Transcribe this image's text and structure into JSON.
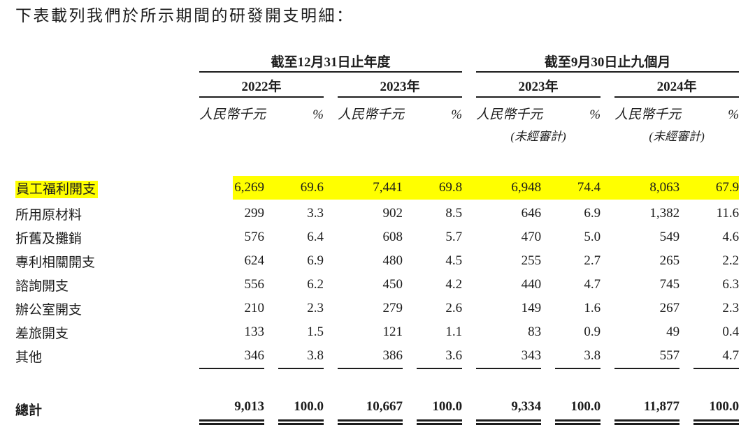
{
  "title": "下表載列我們於所示期間的研發開支明細：",
  "table": {
    "highlight_color": "#ffff00",
    "unit_header": "人民幣千元",
    "pct_header": "%",
    "col_groups": [
      {
        "label": "截至12月31日止年度",
        "years": [
          {
            "label": "2022年"
          },
          {
            "label": "2023年"
          }
        ]
      },
      {
        "label": "截至9月30日止九個月",
        "years": [
          {
            "label": "2023年",
            "unaudited": "(未經審計)"
          },
          {
            "label": "2024年",
            "unaudited": "(未經審計)"
          }
        ]
      }
    ],
    "rows": [
      {
        "label": "員工福利開支",
        "highlight": true,
        "values": [
          "6,269",
          "69.6",
          "7,441",
          "69.8",
          "6,948",
          "74.4",
          "8,063",
          "67.9"
        ]
      },
      {
        "label": "所用原材料",
        "highlight": false,
        "values": [
          "299",
          "3.3",
          "902",
          "8.5",
          "646",
          "6.9",
          "1,382",
          "11.6"
        ]
      },
      {
        "label": "折舊及攤銷",
        "highlight": false,
        "values": [
          "576",
          "6.4",
          "608",
          "5.7",
          "470",
          "5.0",
          "549",
          "4.6"
        ]
      },
      {
        "label": "專利相關開支",
        "highlight": false,
        "values": [
          "624",
          "6.9",
          "480",
          "4.5",
          "255",
          "2.7",
          "265",
          "2.2"
        ]
      },
      {
        "label": "諮詢開支",
        "highlight": false,
        "values": [
          "556",
          "6.2",
          "450",
          "4.2",
          "440",
          "4.7",
          "745",
          "6.3"
        ]
      },
      {
        "label": "辦公室開支",
        "highlight": false,
        "values": [
          "210",
          "2.3",
          "279",
          "2.6",
          "149",
          "1.6",
          "267",
          "2.3"
        ]
      },
      {
        "label": "差旅開支",
        "highlight": false,
        "values": [
          "133",
          "1.5",
          "121",
          "1.1",
          "83",
          "0.9",
          "49",
          "0.4"
        ]
      },
      {
        "label": "其他",
        "highlight": false,
        "values": [
          "346",
          "3.8",
          "386",
          "3.6",
          "343",
          "3.8",
          "557",
          "4.7"
        ]
      }
    ],
    "total_row": {
      "label": "總計",
      "values": [
        "9,013",
        "100.0",
        "10,667",
        "100.0",
        "9,334",
        "100.0",
        "11,877",
        "100.0"
      ]
    }
  }
}
